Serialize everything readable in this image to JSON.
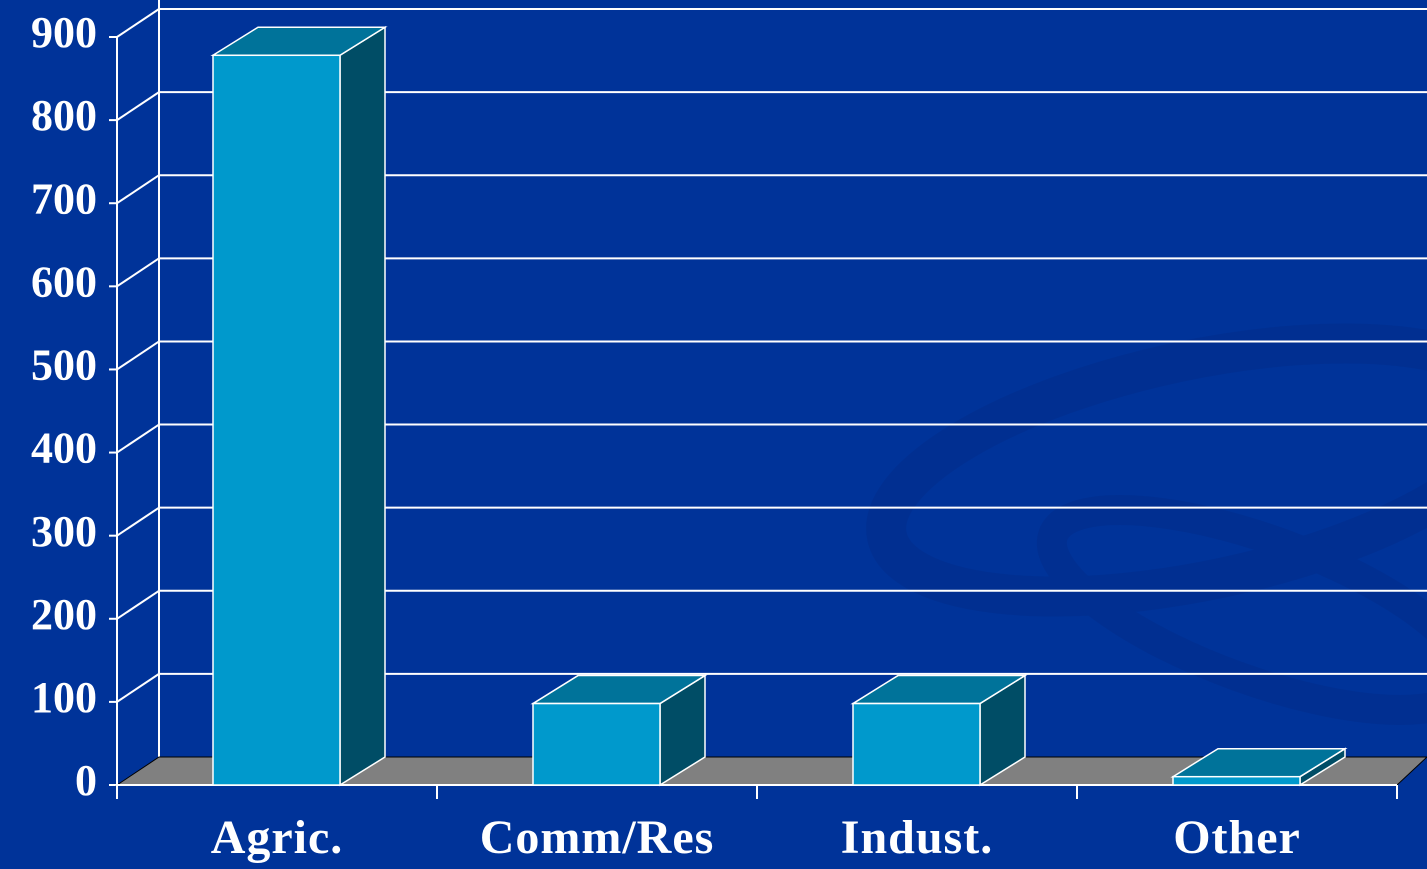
{
  "chart_data": {
    "type": "bar3d",
    "categories": [
      "Agric.",
      "Comm/Res",
      "Indust.",
      "Other"
    ],
    "values": [
      878,
      98,
      98,
      10
    ],
    "colors": {
      "front": "#0099cc",
      "top": "#00739a",
      "side": "#004d66",
      "floor": "#808080"
    },
    "ylim": [
      0,
      900
    ],
    "yticks": [
      0,
      100,
      200,
      300,
      400,
      500,
      600,
      700,
      800,
      900
    ],
    "grid": true
  }
}
